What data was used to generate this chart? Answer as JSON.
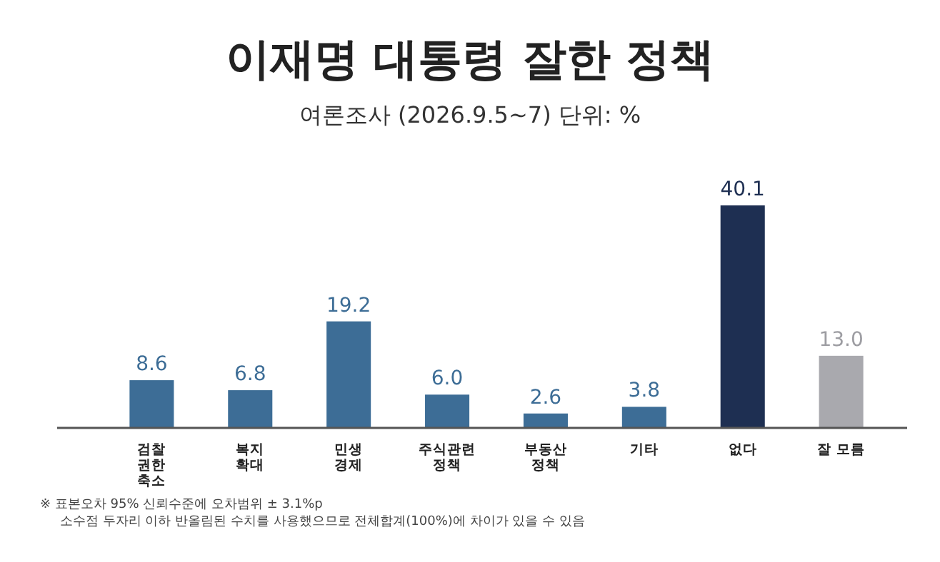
{
  "chart_data": {
    "type": "bar",
    "title": "이재명 대통령 잘한 정책",
    "subtitle": "여론조사 (2026.9.5~7) 단위: %",
    "categories": [
      "검찰\n권한\n축소",
      "복지\n확대",
      "민생\n경제",
      "주식관련\n정책",
      "부동산\n정책",
      "기타",
      "없다",
      "잘 모름"
    ],
    "values": [
      8.6,
      6.8,
      19.2,
      6.0,
      2.6,
      3.8,
      40.1,
      13.0
    ],
    "colors": [
      "#3d6d96",
      "#3d6d96",
      "#3d6d96",
      "#3d6d96",
      "#3d6d96",
      "#3d6d96",
      "#1e2f52",
      "#a9a9ae"
    ],
    "value_labels": [
      "8.6",
      "6.8",
      "19.2",
      "6.0",
      "2.6",
      "3.8",
      "40.1",
      "13.0"
    ],
    "annotations": [
      "※ 표본오차 95% 신뢰수준에 오차범위 ± 3.1%p",
      "소수점 두자리 이하 반올림된 수치를 사용했으므로 전체합계(100%)에 차이가 있을 수 있음"
    ]
  }
}
